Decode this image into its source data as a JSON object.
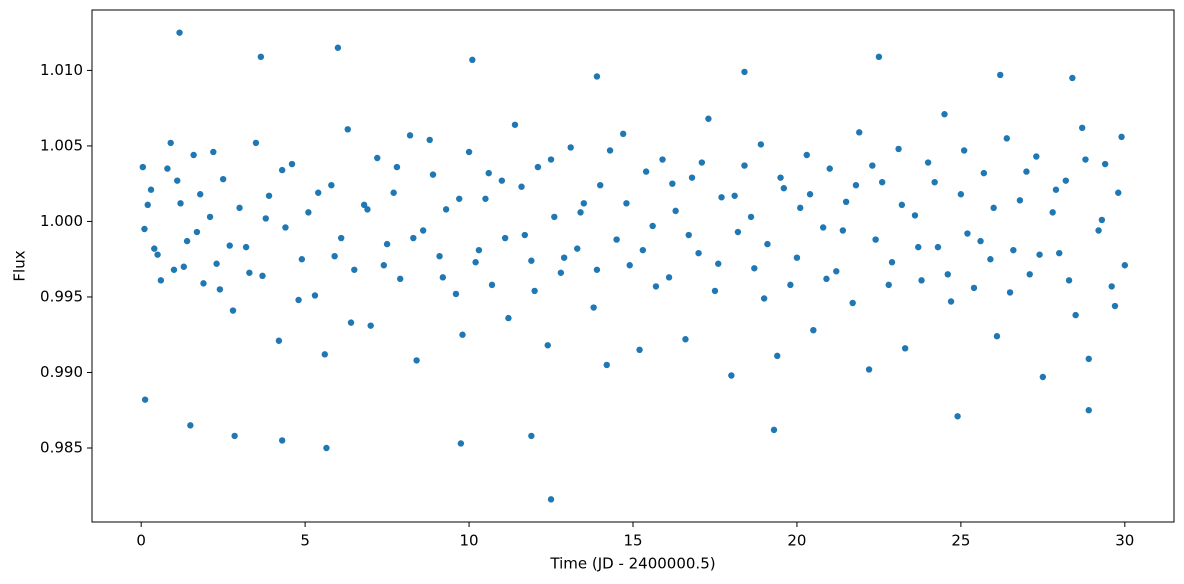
{
  "chart_data": {
    "type": "scatter",
    "x_label": "Time (JD - 2400000.5)",
    "y_label": "Flux",
    "color": "#1f77b4",
    "xlim": [
      -1.5,
      31.5
    ],
    "ylim": [
      0.9801,
      1.014
    ],
    "xticks": [
      0,
      5,
      10,
      15,
      20,
      25,
      30
    ],
    "yticks": [
      0.985,
      {
        "value": 0.99,
        "label": "0.990"
      },
      {
        "value": 0.995,
        "label": "0.995"
      },
      {
        "value": 1.0,
        "label": "1.000"
      },
      1.005,
      {
        "value": 1.01,
        "label": "1.010"
      }
    ],
    "x": [
      0.1,
      0.3,
      0.5,
      0.8,
      1.0,
      1.2,
      1.4,
      1.6,
      1.9,
      2.1,
      2.3,
      2.5,
      2.8,
      3.0,
      3.2,
      3.5,
      3.7,
      3.9,
      4.2,
      4.4,
      4.6,
      4.9,
      5.1,
      5.3,
      5.6,
      5.8,
      6.1,
      6.3,
      6.5,
      6.8,
      7.0,
      7.2,
      7.5,
      7.7,
      7.9,
      8.2,
      8.4,
      8.6,
      8.9,
      9.1,
      9.3,
      9.6,
      9.8,
      10.0,
      10.3,
      10.5,
      10.7,
      11.0,
      11.2,
      11.4,
      11.7,
      11.9,
      12.1,
      12.4,
      12.6,
      12.8,
      13.1,
      13.3,
      13.5,
      13.8,
      14.0,
      14.2,
      14.5,
      14.7,
      14.9,
      15.2,
      15.4,
      15.6,
      15.9,
      16.1,
      16.3,
      16.6,
      16.8,
      17.0,
      17.3,
      17.5,
      17.7,
      18.0,
      18.2,
      18.4,
      18.7,
      18.9,
      19.1,
      19.4,
      19.6,
      19.8,
      20.1,
      20.3,
      20.5,
      20.8,
      21.0,
      21.2,
      21.5,
      21.7,
      21.9,
      22.2,
      22.4,
      22.6,
      22.9,
      23.1,
      23.3,
      23.6,
      23.8,
      24.0,
      24.3,
      24.5,
      24.7,
      25.0,
      25.2,
      25.4,
      25.7,
      25.9,
      26.1,
      26.4,
      26.6,
      26.8,
      27.1,
      27.3,
      27.5,
      27.8,
      28.0,
      28.2,
      28.5,
      28.7,
      28.9,
      29.2,
      29.4,
      29.6,
      29.8,
      30.0,
      0.2,
      0.6,
      1.1,
      1.7,
      2.2,
      2.7,
      3.3,
      3.8,
      4.3,
      4.8,
      5.4,
      5.9,
      6.4,
      6.9,
      7.4,
      7.8,
      8.3,
      8.8,
      9.2,
      9.7,
      10.2,
      10.6,
      11.1,
      11.6,
      12.0,
      12.5,
      12.9,
      13.4,
      13.9,
      14.3,
      14.8,
      15.3,
      15.7,
      16.2,
      16.7,
      17.1,
      17.6,
      18.1,
      18.6,
      19.0,
      19.5,
      20.0,
      20.4,
      20.9,
      21.4,
      21.8,
      22.3,
      22.8,
      23.2,
      23.7,
      24.2,
      24.6,
      25.1,
      25.6,
      26.0,
      26.5,
      27.0,
      27.4,
      27.9,
      28.3,
      28.8,
      29.3,
      29.7,
      29.9,
      0.05,
      0.4,
      0.9,
      1.3,
      1.8,
      2.4,
      1.17,
      3.65,
      6.0,
      12.5,
      5.65,
      9.75,
      11.9,
      1.5,
      2.85,
      4.3,
      19.3,
      24.9,
      28.9,
      22.5,
      10.1,
      26.2,
      28.4,
      18.4,
      13.9,
      0.12
    ],
    "values": [
      0.9995,
      1.0021,
      0.9978,
      1.0035,
      0.9968,
      1.0012,
      0.9987,
      1.0044,
      0.9959,
      1.0003,
      0.9972,
      1.0028,
      0.9941,
      1.0009,
      0.9983,
      1.0052,
      0.9964,
      1.0017,
      0.9921,
      0.9996,
      1.0038,
      0.9975,
      1.0006,
      0.9951,
      0.9912,
      1.0024,
      0.9989,
      1.0061,
      0.9968,
      1.0011,
      0.9931,
      1.0042,
      0.9985,
      1.0019,
      0.9962,
      1.0057,
      0.9908,
      0.9994,
      1.0031,
      0.9977,
      1.0008,
      0.9952,
      0.9925,
      1.0046,
      0.9981,
      1.0015,
      0.9958,
      1.0027,
      0.9936,
      1.0064,
      0.9991,
      0.9974,
      1.0036,
      0.9918,
      1.0003,
      0.9966,
      1.0049,
      0.9982,
      1.0012,
      0.9943,
      1.0024,
      0.9905,
      0.9988,
      1.0058,
      0.9971,
      0.9915,
      1.0033,
      0.9997,
      1.0041,
      0.9963,
      1.0007,
      0.9922,
      1.0029,
      0.9979,
      1.0068,
      0.9954,
      1.0016,
      0.9898,
      0.9993,
      1.0037,
      0.9969,
      1.0051,
      0.9985,
      0.9911,
      1.0022,
      0.9958,
      1.0009,
      1.0044,
      0.9928,
      0.9996,
      1.0035,
      0.9967,
      1.0013,
      0.9946,
      1.0059,
      0.9902,
      0.9988,
      1.0026,
      0.9973,
      1.0048,
      0.9916,
      1.0004,
      0.9961,
      1.0039,
      0.9983,
      1.0071,
      0.9947,
      1.0018,
      0.9992,
      0.9956,
      1.0032,
      0.9975,
      0.9924,
      1.0055,
      0.9981,
      1.0014,
      0.9965,
      1.0043,
      0.9897,
      1.0006,
      0.9979,
      1.0027,
      0.9938,
      1.0062,
      0.9909,
      0.9994,
      1.0038,
      0.9957,
      1.0019,
      0.9971,
      1.0011,
      0.9961,
      1.0027,
      0.9993,
      1.0046,
      0.9984,
      0.9966,
      1.0002,
      1.0034,
      0.9948,
      1.0019,
      0.9977,
      0.9933,
      1.0008,
      0.9971,
      1.0036,
      0.9989,
      1.0054,
      0.9963,
      1.0015,
      0.9973,
      1.0032,
      0.9989,
      1.0023,
      0.9954,
      1.0041,
      0.9976,
      1.0006,
      0.9968,
      1.0047,
      1.0012,
      0.9981,
      0.9957,
      1.0025,
      0.9991,
      1.0039,
      0.9972,
      1.0017,
      1.0003,
      0.9949,
      1.0029,
      0.9976,
      1.0018,
      0.9962,
      0.9994,
      1.0024,
      1.0037,
      0.9958,
      1.0011,
      0.9983,
      1.0026,
      0.9965,
      1.0047,
      0.9987,
      1.0009,
      0.9953,
      1.0033,
      0.9978,
      1.0021,
      0.9961,
      1.0041,
      1.0001,
      0.9944,
      1.0056,
      1.0036,
      0.9982,
      1.0052,
      0.997,
      1.0018,
      0.9955,
      1.0125,
      1.0109,
      1.0115,
      0.9816,
      0.985,
      0.9853,
      0.9858,
      0.9865,
      0.9858,
      0.9855,
      0.9862,
      0.9871,
      0.9875,
      1.0109,
      1.0107,
      1.0097,
      1.0095,
      1.0099,
      1.0096,
      0.9882
    ]
  }
}
